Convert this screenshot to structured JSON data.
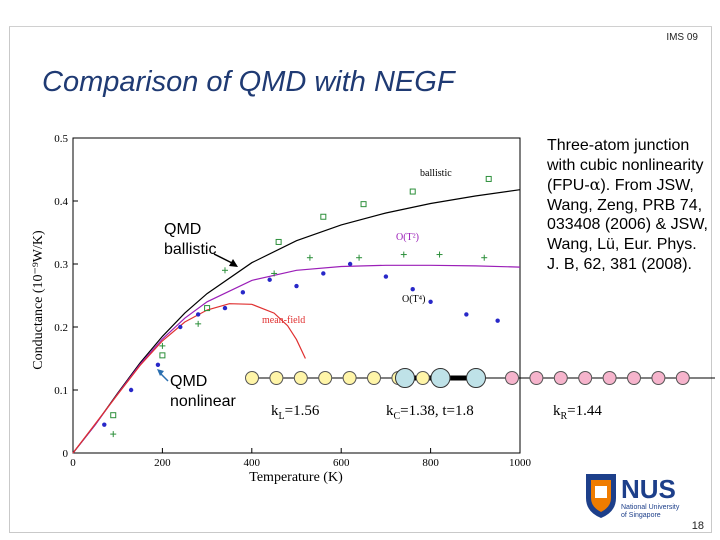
{
  "slide": {
    "tag": "IMS 09",
    "title": "Comparison of QMD with NEGF",
    "page_number": "18"
  },
  "description": {
    "prefix": "Three-atom junction with cubic nonlinearity (FPU-",
    "alpha": "α",
    "suffix": "). From JSW, Wang, Zeng, PRB 74, 033408 (2006) & JSW, Wang, Lü, Eur. Phys. J. B, 62, 381 (2008)."
  },
  "annotations": {
    "ballistic": [
      "QMD",
      "ballistic"
    ],
    "nonlinear": [
      "QMD",
      "nonlinear"
    ]
  },
  "conductances": [
    {
      "symbol": "k",
      "sub": "L",
      "value": "=1.56"
    },
    {
      "symbol": "k",
      "sub": "C",
      "value": "=1.38, t=1.8"
    },
    {
      "symbol": "k",
      "sub": "R",
      "value": "=1.44"
    }
  ],
  "logo": {
    "name": "NUS",
    "line1": "National University",
    "line2": "of Singapore",
    "colors": {
      "blue": "#1d3f8a",
      "orange": "#ef7c00"
    }
  },
  "chain": {
    "left_color": "#fff5a8",
    "center_color": "#bfe2e8",
    "right_color": "#f6b4cc",
    "left_count": 8,
    "center_count": 3,
    "right_count": 8
  },
  "chart_data": {
    "type": "line",
    "xlabel": "Temperature (K)",
    "ylabel": "Conductance (10⁻⁹W/K)",
    "xlim": [
      0,
      1000
    ],
    "ylim": [
      0,
      0.5
    ],
    "xticks": [
      0,
      200,
      400,
      600,
      800,
      1000
    ],
    "yticks": [
      0,
      0.1,
      0.2,
      0.3,
      0.4,
      0.5
    ],
    "series": [
      {
        "name": "ballistic",
        "kind": "line",
        "color": "#000000",
        "x": [
          0,
          50,
          100,
          150,
          200,
          250,
          300,
          400,
          500,
          600,
          700,
          800,
          900,
          1000
        ],
        "y": [
          0,
          0.045,
          0.095,
          0.143,
          0.185,
          0.222,
          0.253,
          0.302,
          0.337,
          0.362,
          0.381,
          0.396,
          0.408,
          0.418
        ]
      },
      {
        "name": "O(T²)",
        "kind": "line",
        "color": "#9b1fb8",
        "x": [
          0,
          50,
          100,
          150,
          200,
          250,
          300,
          400,
          500,
          600,
          700,
          800,
          900,
          1000
        ],
        "y": [
          0,
          0.045,
          0.094,
          0.141,
          0.181,
          0.214,
          0.24,
          0.274,
          0.29,
          0.296,
          0.298,
          0.298,
          0.297,
          0.295
        ]
      },
      {
        "name": "mean-field",
        "kind": "line",
        "color": "#e03030",
        "x": [
          0,
          100,
          150,
          200,
          250,
          300,
          350,
          400,
          450,
          480,
          500,
          520
        ],
        "y": [
          0,
          0.093,
          0.139,
          0.178,
          0.208,
          0.227,
          0.237,
          0.236,
          0.222,
          0.202,
          0.18,
          0.15
        ]
      },
      {
        "name": "QMD ballistic",
        "kind": "square",
        "color": "#2c8f3a",
        "x": [
          90,
          200,
          300,
          460,
          560,
          650,
          760,
          930
        ],
        "y": [
          0.06,
          0.155,
          0.23,
          0.335,
          0.375,
          0.395,
          0.415,
          0.435
        ]
      },
      {
        "name": "QMD nonlinear",
        "kind": "plus",
        "color": "#2c8f3a",
        "x": [
          90,
          200,
          280,
          340,
          450,
          530,
          640,
          740,
          820,
          920
        ],
        "y": [
          0.03,
          0.17,
          0.205,
          0.29,
          0.285,
          0.31,
          0.31,
          0.315,
          0.315,
          0.31
        ]
      },
      {
        "name": "NEGF",
        "kind": "dot",
        "color": "#2828c8",
        "x": [
          70,
          130,
          190,
          240,
          280,
          340,
          380,
          440,
          500,
          560,
          620,
          700,
          760,
          800,
          880,
          950
        ],
        "y": [
          0.045,
          0.1,
          0.14,
          0.2,
          0.22,
          0.23,
          0.255,
          0.275,
          0.265,
          0.285,
          0.3,
          0.28,
          0.26,
          0.24,
          0.22,
          0.21
        ]
      }
    ],
    "labels": {
      "ballistic": "ballistic",
      "ot2": "O(T²)",
      "ot4": "O(T⁴)",
      "meanfield": "mean-field"
    }
  }
}
